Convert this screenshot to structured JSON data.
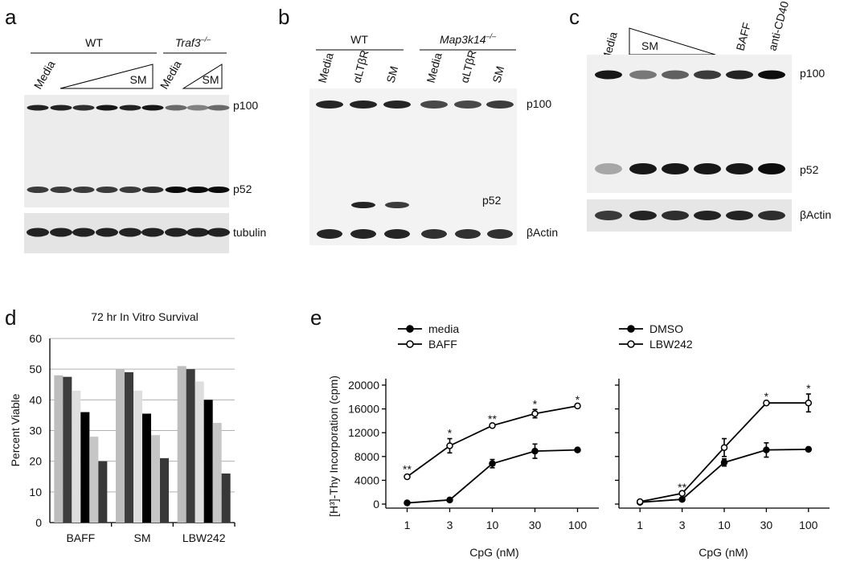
{
  "blots": [
    {
      "label": "a",
      "groups": [
        {
          "name": "WT"
        },
        {
          "name": "Traf3",
          "sup": "–/–"
        }
      ],
      "lanes": [
        "Media",
        "SM",
        "Media",
        "SM"
      ],
      "bands": [
        "p100",
        "p52",
        "tubulin"
      ]
    },
    {
      "label": "b",
      "groups": [
        {
          "name": "WT"
        },
        {
          "name": "Map3k14",
          "sup": "–/–"
        }
      ],
      "lanes": [
        "Media",
        "αLTβR",
        "SM",
        "Media",
        "αLTβR",
        "SM"
      ],
      "bands": [
        "p100",
        "p52",
        "βActin"
      ]
    },
    {
      "label": "c",
      "lanes": [
        "Media",
        "SM",
        "BAFF",
        "anti-CD40"
      ],
      "bands": [
        "p100",
        "p52",
        "βActin"
      ]
    }
  ],
  "chart_data": [
    {
      "type": "bar",
      "label": "d",
      "title": "72 hr In Vitro Survival",
      "y_label": "Percent Viable",
      "categories": [
        "BAFF",
        "SM",
        "LBW242"
      ],
      "series": [
        {
          "color": "#bdbdbd",
          "values": [
            48,
            50,
            51
          ]
        },
        {
          "color": "#3c3c3c",
          "values": [
            47.5,
            49,
            50
          ]
        },
        {
          "color": "#dedede",
          "values": [
            43,
            43,
            46
          ]
        },
        {
          "color": "#000000",
          "values": [
            36,
            35.5,
            40
          ]
        },
        {
          "color": "#c6c6c6",
          "values": [
            28,
            28.5,
            32.5
          ]
        },
        {
          "color": "#383838",
          "values": [
            20,
            21,
            16
          ]
        }
      ],
      "ylim": [
        0,
        60
      ],
      "yticks": [
        0,
        10,
        20,
        30,
        40,
        50,
        60
      ],
      "grid": true
    },
    {
      "type": "line",
      "label": "e",
      "y_label": "[H³]-Thy Incorporation (cpm)",
      "x_label": "CpG (nM)",
      "categories": [
        "1",
        "3",
        "10",
        "30",
        "100"
      ],
      "series": [
        {
          "name": "media",
          "marker": "filled",
          "color": "#000000",
          "values": [
            200,
            700,
            6800,
            8900,
            9100
          ],
          "errors": [
            150,
            150,
            700,
            1200,
            300
          ]
        },
        {
          "name": "BAFF",
          "marker": "open",
          "color": "#000000",
          "values": [
            4600,
            9800,
            13200,
            15200,
            16500
          ],
          "errors": [
            300,
            1200,
            200,
            700,
            150
          ]
        }
      ],
      "significance": [
        "**",
        "*",
        "**",
        "*",
        "*"
      ],
      "ylim": [
        0,
        20000
      ],
      "yticks": [
        0,
        4000,
        8000,
        12000,
        16000,
        20000
      ]
    },
    {
      "type": "line",
      "x_label": "CpG (nM)",
      "categories": [
        "1",
        "3",
        "10",
        "30",
        "100"
      ],
      "series": [
        {
          "name": "DMSO",
          "marker": "filled",
          "color": "#000000",
          "values": [
            300,
            800,
            7000,
            9100,
            9200
          ],
          "errors": [
            100,
            100,
            600,
            1200,
            300
          ]
        },
        {
          "name": "LBW242",
          "marker": "open",
          "color": "#000000",
          "values": [
            400,
            1800,
            9500,
            17000,
            17000
          ],
          "errors": [
            100,
            100,
            1500,
            150,
            1500
          ]
        }
      ],
      "significance": [
        null,
        "**",
        null,
        "*",
        "*"
      ],
      "ylim": [
        0,
        20000
      ],
      "yticks": [
        0,
        4000,
        8000,
        12000,
        16000,
        20000
      ]
    }
  ]
}
